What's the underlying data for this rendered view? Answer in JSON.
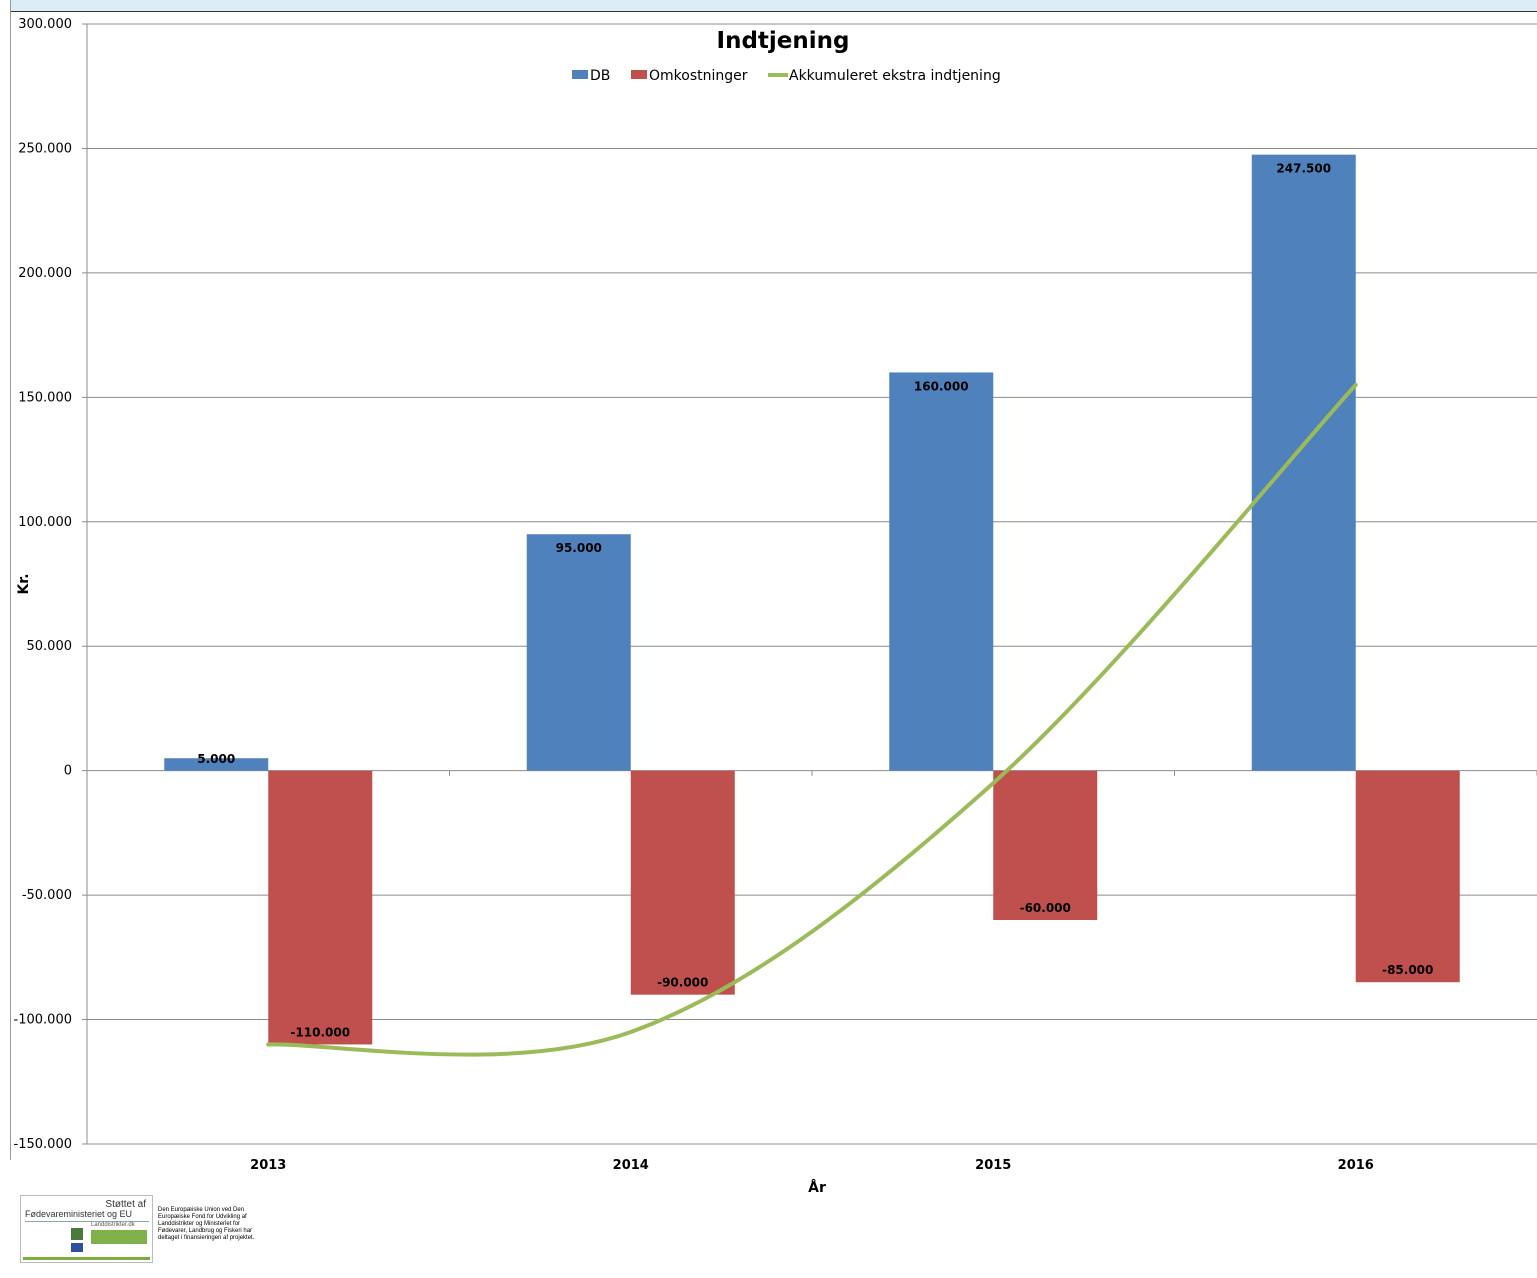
{
  "chart_data": {
    "type": "bar",
    "title": "Indtjening",
    "xlabel": "År",
    "ylabel": "Kr.",
    "categories": [
      "2013",
      "2014",
      "2015",
      "2016"
    ],
    "series": [
      {
        "name": "DB",
        "kind": "bar",
        "color": "#4f81bd",
        "values": [
          5000,
          95000,
          160000,
          247500
        ],
        "labels": [
          "5.000",
          "95.000",
          "160.000",
          "247.500"
        ]
      },
      {
        "name": "Omkostninger",
        "kind": "bar",
        "color": "#c0504d",
        "values": [
          -110000,
          -90000,
          -60000,
          -85000
        ],
        "labels": [
          "-110.000",
          "-90.000",
          "-60.000",
          "-85.000"
        ]
      },
      {
        "name": "Akkumuleret ekstra indtjening",
        "kind": "line",
        "smooth": true,
        "color": "#9bbb59",
        "values": [
          -110000,
          -105000,
          -5000,
          155000
        ]
      }
    ],
    "ylim": [
      -150000,
      300000
    ],
    "yticks": [
      -150000,
      -100000,
      -50000,
      0,
      50000,
      100000,
      150000,
      200000,
      250000,
      300000
    ],
    "ytick_labels": [
      "-150.000",
      "-100.000",
      "-50.000",
      "0",
      "50.000",
      "100.000",
      "150.000",
      "200.000",
      "250.000",
      "300.000"
    ],
    "grid": true,
    "legend": "top-center"
  },
  "footer": {
    "logo_line1": "Støttet af",
    "logo_line2": "Fødevareministeriet og EU",
    "logo_line3": "Landdistrikter.dk",
    "text": "Den Europæiske Union ved Den Europæiske Fond for Udvikling af Landdistrikter og Ministeriet for Fødevarer, Landbrug og Fiskeri har deltaget i finansieringen af projektet."
  }
}
